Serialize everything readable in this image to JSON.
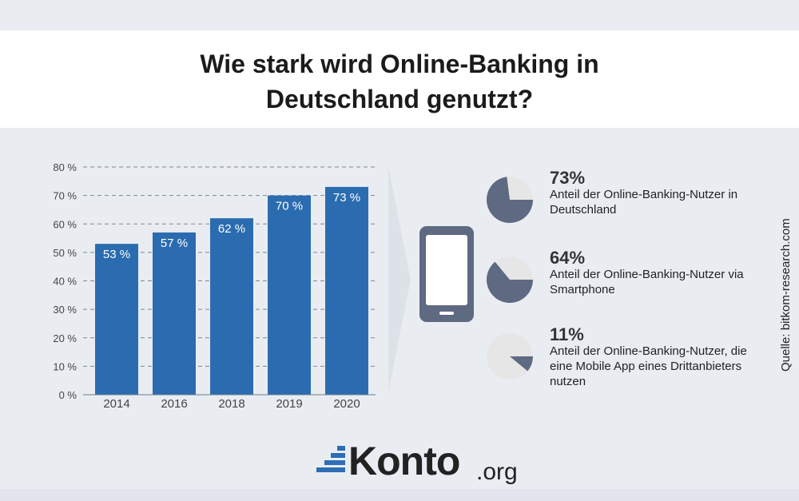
{
  "title": [
    "Wie stark wird Online-Banking in",
    "Deutschland genutzt?"
  ],
  "chart_data": {
    "type": "bar",
    "categories": [
      "2014",
      "2016",
      "2018",
      "2019",
      "2020"
    ],
    "values": [
      53,
      57,
      62,
      70,
      73
    ],
    "value_labels": [
      "53 %",
      "57 %",
      "62 %",
      "70 %",
      "73 %"
    ],
    "ylim": [
      0,
      80
    ],
    "yticks": [
      0,
      10,
      20,
      30,
      40,
      50,
      60,
      70,
      80
    ],
    "ytick_labels": [
      "0 %",
      "10 %",
      "20 %",
      "30 %",
      "40 %",
      "50 %",
      "60 %",
      "70 %",
      "80 %"
    ],
    "grid": "dashed horizontal",
    "bar_color": "#2b6cb0"
  },
  "stats": [
    {
      "value": 73,
      "label": "73%",
      "desc": "Anteil der Online-Banking-Nutzer in Deutschland"
    },
    {
      "value": 64,
      "label": "64%",
      "desc": "Anteil der Online-Banking-Nutzer via Smartphone"
    },
    {
      "value": 11,
      "label": "11%",
      "desc": "Anteil der Online-Banking-Nutzer, die eine Mobile App eines Drittanbieters nutzen"
    }
  ],
  "source": "Quelle: bitkom-research.com",
  "logo": {
    "name": "Konto",
    "tld": ".org"
  },
  "colors": {
    "bar": "#2b6cb0",
    "pie_fill": "#5e6a82",
    "pie_bg": "#e6e6e6",
    "phone": "#5e6a82",
    "logo_blue": "#2f6db5"
  }
}
